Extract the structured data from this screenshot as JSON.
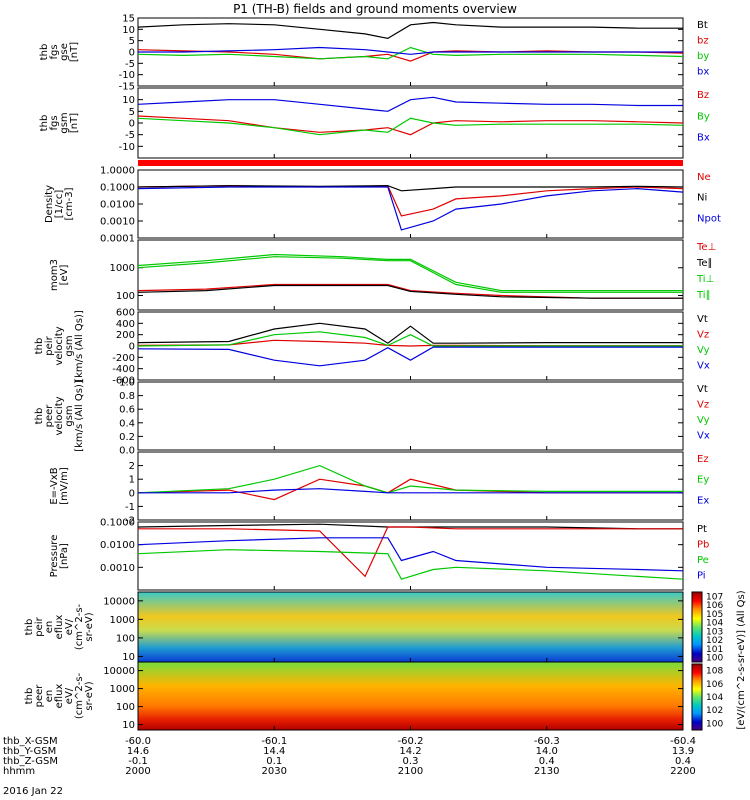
{
  "title": "P1 (TH-B) fields and ground moments overview",
  "date": "2016 Jan 22",
  "x_axis": {
    "hhmm": [
      "2000",
      "2030",
      "2100",
      "2130",
      "2200"
    ],
    "rows": [
      {
        "label": "thb_X-GSM",
        "values": [
          "-60.0",
          "-60.1",
          "-60.2",
          "-60.3",
          "-60.4"
        ]
      },
      {
        "label": "thb_Y-GSM",
        "values": [
          "14.6",
          "14.4",
          "14.2",
          "14.0",
          "13.9"
        ]
      },
      {
        "label": "thb_Z-GSM",
        "values": [
          "-0.1",
          "0.1",
          "0.3",
          "0.4",
          "0.4"
        ]
      },
      {
        "label": "hhmm",
        "values": [
          "2000",
          "2030",
          "2100",
          "2130",
          "2200"
        ]
      }
    ]
  },
  "colorbar": {
    "label": "[eV/(cm^2-s-sr-eV)] (All Qs)",
    "ticks_top": [
      "10^7",
      "10^6",
      "10^5",
      "10^4",
      "10^3",
      "10^2",
      "10^1",
      "10^0"
    ],
    "ticks_bottom": [
      "10^8",
      "10^6",
      "10^4",
      "10^2",
      "10^0"
    ]
  },
  "chart_data": [
    {
      "type": "line",
      "id": "fgs_gse",
      "ylabel": [
        "thb",
        "fgs",
        "gse",
        "[nT]"
      ],
      "ylim": [
        -15,
        15
      ],
      "yticks": [
        15,
        10,
        5,
        0,
        -5,
        -10,
        -15
      ],
      "series": [
        {
          "name": "Bt",
          "color": "#000000",
          "x": [
            2000,
            2010,
            2020,
            2030,
            2040,
            2050,
            2055,
            2100,
            2105,
            2110,
            2120,
            2130,
            2140,
            2150,
            2200
          ],
          "values": [
            11,
            12,
            12.5,
            12,
            10,
            8,
            6,
            12,
            13,
            12,
            11,
            11,
            11,
            10.5,
            10.5
          ]
        },
        {
          "name": "bz",
          "color": "#e00000",
          "x": [
            2000,
            2010,
            2020,
            2030,
            2040,
            2050,
            2055,
            2100,
            2105,
            2110,
            2120,
            2130,
            2140,
            2150,
            2200
          ],
          "values": [
            1,
            0.5,
            0,
            -1,
            -3,
            -2,
            -1,
            -4,
            0,
            0.5,
            0,
            0.5,
            0,
            0,
            -0.5
          ]
        },
        {
          "name": "by",
          "color": "#00c800",
          "x": [
            2000,
            2010,
            2020,
            2030,
            2040,
            2050,
            2055,
            2100,
            2105,
            2110,
            2120,
            2130,
            2140,
            2150,
            2200
          ],
          "values": [
            -1,
            -1.5,
            -1,
            -2,
            -3,
            -2,
            -3,
            2,
            -1,
            -1.5,
            -1,
            -1,
            -1,
            -1.5,
            -2
          ]
        },
        {
          "name": "bx",
          "color": "#0000e0",
          "x": [
            2000,
            2010,
            2020,
            2030,
            2040,
            2050,
            2055,
            2100,
            2105,
            2110,
            2120,
            2130,
            2140,
            2150,
            2200
          ],
          "values": [
            0,
            0,
            0.5,
            1,
            2,
            1,
            0,
            -1,
            0,
            0,
            0,
            0,
            0,
            0,
            0
          ]
        }
      ]
    },
    {
      "type": "line",
      "id": "fgs_gsm",
      "ylabel": [
        "thb",
        "fgs",
        "gsm",
        "[nT]"
      ],
      "ylim": [
        -15,
        15
      ],
      "yticks": [
        10,
        5,
        0,
        -5,
        -10
      ],
      "series": [
        {
          "name": "Bz",
          "color": "#e00000",
          "x": [
            2000,
            2010,
            2020,
            2030,
            2040,
            2050,
            2055,
            2100,
            2105,
            2110,
            2120,
            2130,
            2140,
            2150,
            2200
          ],
          "values": [
            3,
            2,
            1,
            -2,
            -4,
            -3,
            -2,
            -5,
            0,
            1,
            0.5,
            1,
            1,
            0.5,
            0
          ]
        },
        {
          "name": "By",
          "color": "#00c800",
          "x": [
            2000,
            2010,
            2020,
            2030,
            2040,
            2050,
            2055,
            2100,
            2105,
            2110,
            2120,
            2130,
            2140,
            2150,
            2200
          ],
          "values": [
            2,
            1,
            0,
            -2,
            -5,
            -3,
            -4,
            2,
            0,
            -1,
            -0.5,
            -0.5,
            -0.5,
            -0.5,
            -1
          ]
        },
        {
          "name": "Bx",
          "color": "#0000e0",
          "x": [
            2000,
            2010,
            2020,
            2030,
            2040,
            2050,
            2055,
            2100,
            2105,
            2110,
            2120,
            2130,
            2140,
            2150,
            2200
          ],
          "values": [
            8,
            9,
            10,
            10,
            8,
            6,
            5,
            10,
            11,
            9,
            8.5,
            8,
            8,
            7.5,
            7.5
          ]
        }
      ]
    },
    {
      "type": "line",
      "id": "density",
      "log": true,
      "ylabel": [
        "Density",
        "[1/cc]",
        "[cm-3]"
      ],
      "ylim": [
        0.0001,
        1
      ],
      "yticks": [
        "1.0000",
        "0.1000",
        "0.0100",
        "0.0010",
        "0.0001"
      ],
      "series": [
        {
          "name": "Ne",
          "color": "#e00000",
          "x": [
            2000,
            2020,
            2040,
            2055,
            2058,
            2105,
            2110,
            2120,
            2130,
            2140,
            2150,
            2200
          ],
          "values": [
            0.1,
            0.12,
            0.1,
            0.12,
            0.002,
            0.005,
            0.02,
            0.03,
            0.06,
            0.08,
            0.1,
            0.08
          ]
        },
        {
          "name": "Ni",
          "color": "#000000",
          "x": [
            2000,
            2020,
            2040,
            2055,
            2058,
            2105,
            2110,
            2120,
            2130,
            2140,
            2150,
            2200
          ],
          "values": [
            0.1,
            0.12,
            0.11,
            0.12,
            0.06,
            0.08,
            0.1,
            0.1,
            0.1,
            0.1,
            0.11,
            0.1
          ]
        },
        {
          "name": "Npot",
          "color": "#0000e0",
          "x": [
            2000,
            2020,
            2040,
            2055,
            2058,
            2105,
            2110,
            2120,
            2130,
            2140,
            2150,
            2200
          ],
          "values": [
            0.08,
            0.1,
            0.1,
            0.1,
            0.0003,
            0.001,
            0.005,
            0.01,
            0.03,
            0.06,
            0.08,
            0.05
          ]
        }
      ]
    },
    {
      "type": "line",
      "id": "temperature",
      "log": true,
      "ylabel": [
        "mom3",
        "[eV]"
      ],
      "ylim": [
        30,
        10000
      ],
      "yticks": [
        "1000",
        "100"
      ],
      "series": [
        {
          "name": "Te⊥",
          "color": "#e00000",
          "x": [
            2000,
            2015,
            2030,
            2045,
            2055,
            2100,
            2110,
            2120,
            2140,
            2200
          ],
          "values": [
            150,
            170,
            250,
            250,
            250,
            150,
            120,
            100,
            80,
            80
          ]
        },
        {
          "name": "Te∥",
          "color": "#000000",
          "x": [
            2000,
            2015,
            2030,
            2045,
            2055,
            2100,
            2110,
            2120,
            2140,
            2200
          ],
          "values": [
            130,
            150,
            230,
            230,
            230,
            140,
            110,
            90,
            80,
            80
          ]
        },
        {
          "name": "Ti⊥",
          "color": "#00c800",
          "x": [
            2000,
            2015,
            2030,
            2045,
            2055,
            2100,
            2110,
            2120,
            2140,
            2200
          ],
          "values": [
            1200,
            1800,
            3000,
            2500,
            2000,
            2000,
            300,
            150,
            150,
            150
          ]
        },
        {
          "name": "Ti∥",
          "color": "#00c800",
          "x": [
            2000,
            2015,
            2030,
            2045,
            2055,
            2100,
            2110,
            2120,
            2140,
            2200
          ],
          "values": [
            1000,
            1500,
            2500,
            2200,
            1800,
            1800,
            250,
            130,
            130,
            130
          ]
        }
      ]
    },
    {
      "type": "line",
      "id": "peir_velocity",
      "ylabel": [
        "thb",
        "peir",
        "velocity",
        "gsm",
        "[km/s (All Qs)]"
      ],
      "ylim": [
        -600,
        600
      ],
      "yticks": [
        600,
        400,
        200,
        0,
        -200,
        -400,
        -600
      ],
      "series": [
        {
          "name": "Vt",
          "color": "#000000",
          "x": [
            2000,
            2020,
            2030,
            2040,
            2050,
            2055,
            2100,
            2105,
            2110,
            2130,
            2200
          ],
          "values": [
            60,
            80,
            300,
            400,
            300,
            50,
            350,
            50,
            50,
            60,
            60
          ]
        },
        {
          "name": "Vz",
          "color": "#e00000",
          "x": [
            2000,
            2020,
            2030,
            2040,
            2050,
            2055,
            2100,
            2105,
            2110,
            2130,
            2200
          ],
          "values": [
            10,
            20,
            100,
            80,
            50,
            10,
            0,
            10,
            10,
            5,
            5
          ]
        },
        {
          "name": "Vy",
          "color": "#00c800",
          "x": [
            2000,
            2020,
            2030,
            2040,
            2050,
            2055,
            2100,
            2105,
            2110,
            2130,
            2200
          ],
          "values": [
            0,
            20,
            200,
            250,
            150,
            10,
            200,
            0,
            0,
            0,
            0
          ]
        },
        {
          "name": "Vx",
          "color": "#0000e0",
          "x": [
            2000,
            2020,
            2030,
            2040,
            2050,
            2055,
            2100,
            2105,
            2110,
            2130,
            2200
          ],
          "values": [
            -50,
            -60,
            -250,
            -350,
            -250,
            -30,
            -250,
            -20,
            -20,
            -20,
            -20
          ]
        }
      ]
    },
    {
      "type": "line",
      "id": "peer_velocity",
      "ylabel": [
        "thb",
        "peer",
        "velocity",
        "gsm",
        "[km/s (All Qs)]"
      ],
      "ylim": [
        0,
        1
      ],
      "yticks": [
        "1.0",
        "0.8",
        "0.6",
        "0.4",
        "0.2",
        "0.0"
      ],
      "series": [
        {
          "name": "Vt",
          "color": "#000000",
          "x": [],
          "values": []
        },
        {
          "name": "Vz",
          "color": "#e00000",
          "x": [],
          "values": []
        },
        {
          "name": "Vy",
          "color": "#00c800",
          "x": [],
          "values": []
        },
        {
          "name": "Vx",
          "color": "#0000e0",
          "x": [],
          "values": []
        }
      ]
    },
    {
      "type": "line",
      "id": "e_field",
      "ylabel": [
        "E=-VxB",
        "[mV/m]"
      ],
      "ylim": [
        -2,
        3
      ],
      "yticks": [
        2,
        1,
        0,
        -1,
        -2
      ],
      "series": [
        {
          "name": "Ez",
          "color": "#e00000",
          "x": [
            2000,
            2020,
            2030,
            2040,
            2050,
            2055,
            2100,
            2110,
            2130,
            2200
          ],
          "values": [
            0,
            0.2,
            -0.5,
            1,
            0.5,
            0,
            1,
            0.2,
            0,
            0
          ]
        },
        {
          "name": "Ey",
          "color": "#00c800",
          "x": [
            2000,
            2020,
            2030,
            2040,
            2050,
            2055,
            2100,
            2110,
            2130,
            2200
          ],
          "values": [
            0,
            0.3,
            1,
            2,
            0.5,
            0,
            0.5,
            0.2,
            0.1,
            0.1
          ]
        },
        {
          "name": "Ex",
          "color": "#0000e0",
          "x": [
            2000,
            2020,
            2030,
            2040,
            2050,
            2055,
            2100,
            2110,
            2130,
            2200
          ],
          "values": [
            0,
            0,
            0.2,
            0.3,
            0.1,
            0,
            0,
            0,
            0,
            0
          ]
        }
      ]
    },
    {
      "type": "line",
      "id": "pressure",
      "log": true,
      "ylabel": [
        "Pressure",
        "[nPa]"
      ],
      "ylim": [
        0.0001,
        0.1
      ],
      "yticks": [
        "0.1000",
        "0.0100",
        "0.0010"
      ],
      "series": [
        {
          "name": "Pt",
          "color": "#000000",
          "x": [
            2000,
            2020,
            2040,
            2055,
            2100,
            2110,
            2130,
            2150,
            2200
          ],
          "values": [
            0.06,
            0.07,
            0.08,
            0.06,
            0.06,
            0.06,
            0.06,
            0.05,
            0.05
          ]
        },
        {
          "name": "Pb",
          "color": "#e00000",
          "x": [
            2000,
            2020,
            2040,
            2050,
            2055,
            2100,
            2110,
            2130,
            2150,
            2200
          ],
          "values": [
            0.05,
            0.05,
            0.04,
            0.0004,
            0.06,
            0.06,
            0.05,
            0.05,
            0.05,
            0.05
          ]
        },
        {
          "name": "Pe",
          "color": "#00c800",
          "x": [
            2000,
            2020,
            2040,
            2055,
            2058,
            2105,
            2110,
            2130,
            2150,
            2200
          ],
          "values": [
            0.004,
            0.006,
            0.005,
            0.004,
            0.0003,
            0.0008,
            0.001,
            0.0007,
            0.0004,
            0.0003
          ]
        },
        {
          "name": "Pi",
          "color": "#0000e0",
          "x": [
            2000,
            2020,
            2040,
            2055,
            2058,
            2105,
            2110,
            2130,
            2150,
            2200
          ],
          "values": [
            0.01,
            0.015,
            0.02,
            0.02,
            0.002,
            0.005,
            0.002,
            0.001,
            0.0008,
            0.0007
          ]
        }
      ]
    },
    {
      "type": "heatmap",
      "id": "peir_eflux",
      "ylabel": [
        "thb",
        "peir",
        "en",
        "eflux",
        "eV/",
        "(cm^2-s-",
        "sr-eV)"
      ],
      "ylim": [
        5,
        30000
      ],
      "yticks": [
        "10000",
        "1000",
        "100",
        "10"
      ]
    },
    {
      "type": "heatmap",
      "id": "peer_eflux",
      "ylabel": [
        "thb",
        "peer",
        "en",
        "eflux",
        "eV/",
        "(cm^2-s-",
        "sr-eV)"
      ],
      "ylim": [
        5,
        30000
      ],
      "yticks": [
        "10000",
        "1000",
        "100",
        "10"
      ]
    }
  ]
}
